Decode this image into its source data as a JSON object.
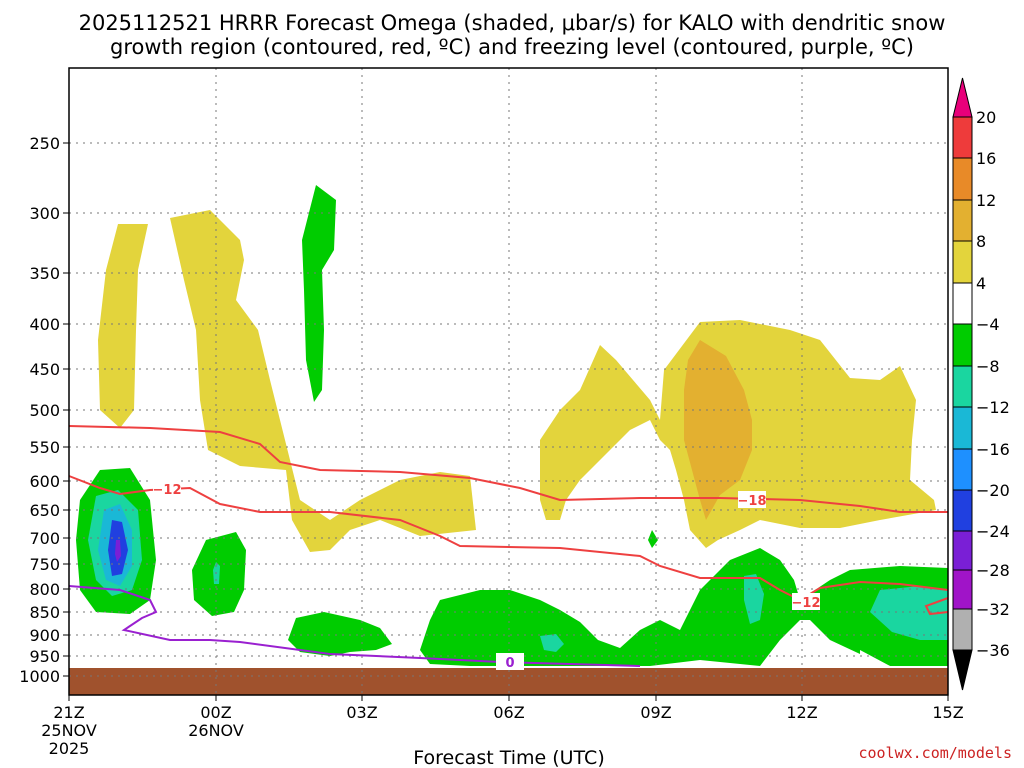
{
  "chart_data": {
    "type": "heatmap",
    "title_line1": "2025112521 HRRR Forecast Omega (shaded, μbar/s) for KALO with dendritic snow",
    "title_line2": "growth region (contoured, red, ºC) and freezing level (contoured, purple, ºC)",
    "xlabel": "Forecast Time (UTC)",
    "ylabel": "",
    "x_ticks": [
      "21Z",
      "00Z",
      "03Z",
      "06Z",
      "09Z",
      "12Z",
      "15Z"
    ],
    "x_date_labels": [
      {
        "tick": "21Z",
        "lines": [
          "25NOV",
          "2025"
        ]
      },
      {
        "tick": "00Z",
        "lines": [
          "26NOV"
        ]
      }
    ],
    "y_ticks": [
      "250",
      "300",
      "350",
      "400",
      "450",
      "500",
      "550",
      "600",
      "650",
      "700",
      "750",
      "800",
      "850",
      "900",
      "950",
      "1000"
    ],
    "colorbar": {
      "labels": [
        "20",
        "16",
        "12",
        "8",
        "4",
        "−4",
        "−8",
        "−12",
        "−16",
        "−20",
        "−24",
        "−28",
        "−32",
        "−36"
      ],
      "colors": [
        "#e8007a",
        "#ee3b3b",
        "#e88a28",
        "#e3b030",
        "#e3d43c",
        "#ffffff",
        "#00cc00",
        "#1ad6a0",
        "#1ab8d6",
        "#1e90ff",
        "#2040e0",
        "#7a1fd6",
        "#a014c8",
        "#b0b0b0",
        "#000000"
      ]
    },
    "contour_labels": {
      "dgz_left": "−12",
      "dgz_mid": "−18",
      "dgz_right": "−12",
      "freezing": "0"
    },
    "colors": {
      "dgz": "#ee4040",
      "freezing": "#9a20d0",
      "ground": "#a0522d"
    }
  },
  "credit": "coolwx.com/models"
}
